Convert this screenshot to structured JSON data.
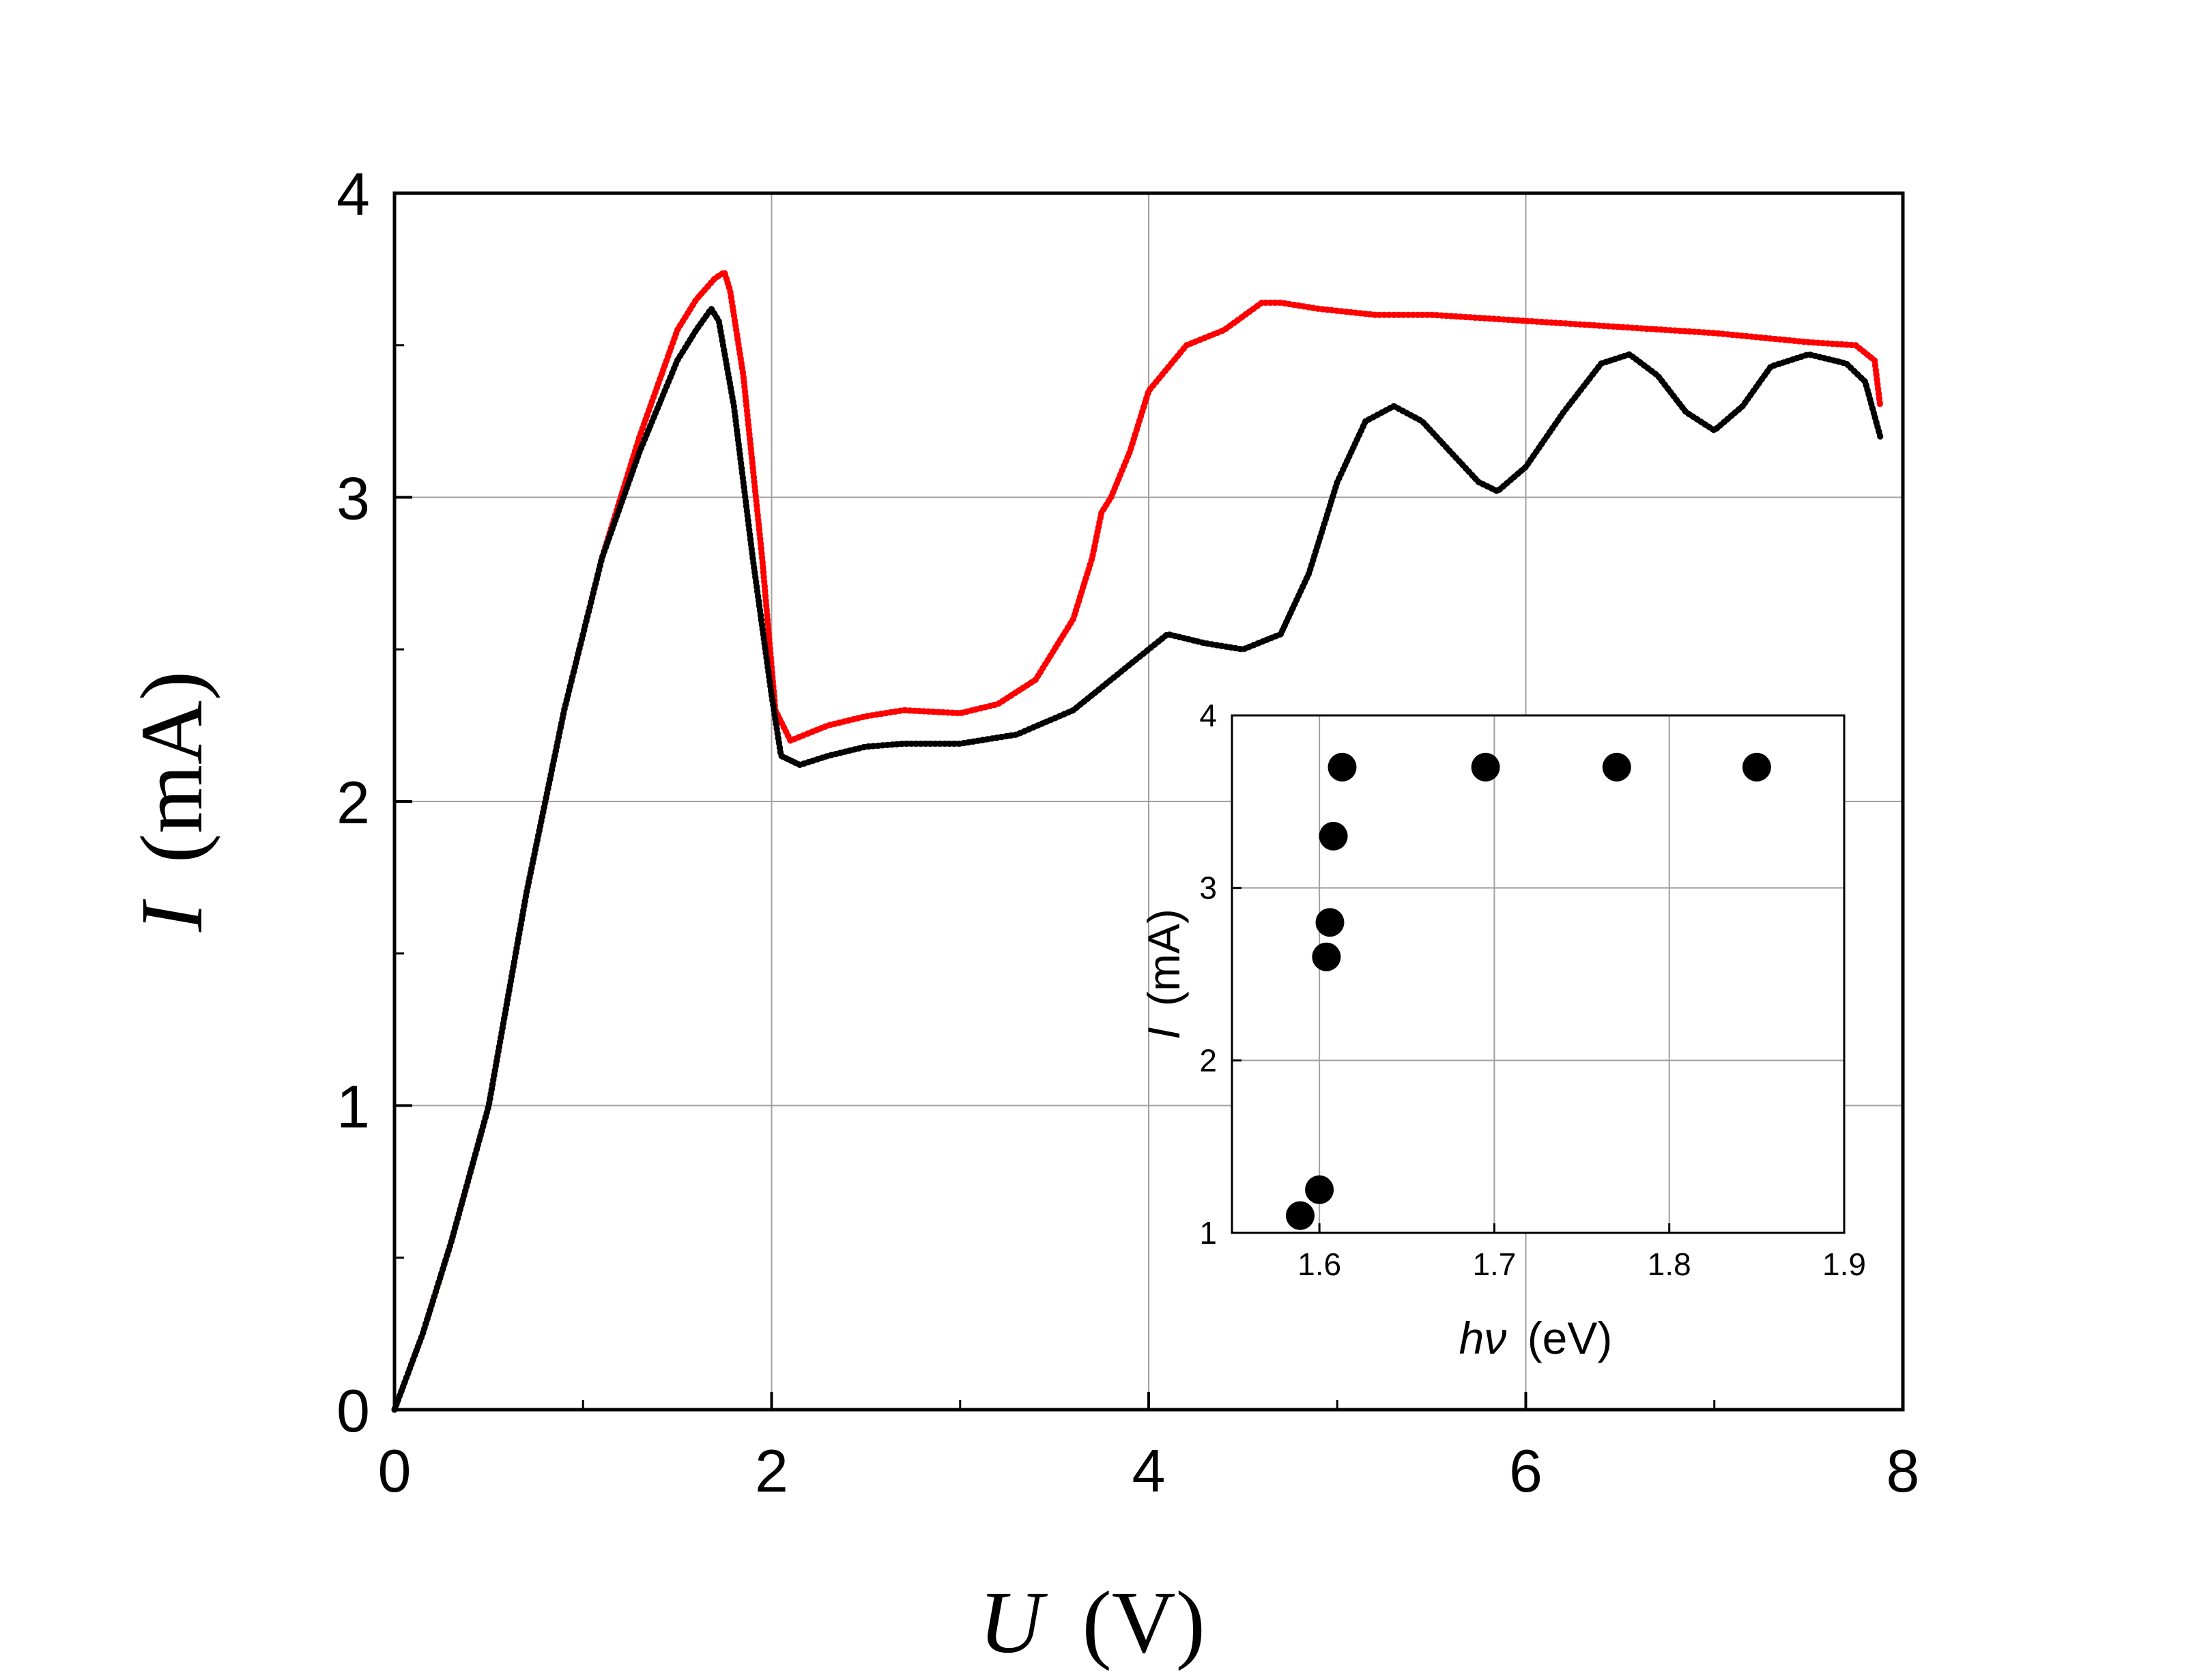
{
  "chart_data": [
    {
      "type": "line",
      "id": "main",
      "title": "",
      "xlabel": {
        "var": "U",
        "unit": "(V)"
      },
      "ylabel": {
        "var": "I",
        "unit": "(mA)"
      },
      "xlim": [
        0,
        8
      ],
      "ylim": [
        0,
        4
      ],
      "xticks": [
        0,
        2,
        4,
        6,
        8
      ],
      "yticks": [
        0,
        1,
        2,
        3,
        4
      ],
      "grid": true,
      "series": [
        {
          "name": "red",
          "color": "#ff0000",
          "x": [
            0.0,
            0.15,
            0.3,
            0.5,
            0.7,
            0.9,
            1.1,
            1.3,
            1.5,
            1.6,
            1.7,
            1.75,
            1.78,
            1.85,
            1.95,
            2.02,
            2.1,
            2.3,
            2.5,
            2.7,
            3.0,
            3.2,
            3.4,
            3.6,
            3.7,
            3.75,
            3.8,
            3.9,
            4.0,
            4.2,
            4.4,
            4.6,
            4.7,
            4.9,
            5.2,
            5.5,
            6.0,
            6.5,
            7.0,
            7.5,
            7.75,
            7.85,
            7.88
          ],
          "y": [
            0.0,
            0.25,
            0.55,
            1.0,
            1.7,
            2.3,
            2.8,
            3.2,
            3.55,
            3.65,
            3.72,
            3.74,
            3.68,
            3.4,
            2.8,
            2.3,
            2.2,
            2.25,
            2.28,
            2.3,
            2.29,
            2.32,
            2.4,
            2.6,
            2.8,
            2.95,
            3.0,
            3.15,
            3.35,
            3.5,
            3.55,
            3.64,
            3.64,
            3.62,
            3.6,
            3.6,
            3.58,
            3.56,
            3.54,
            3.51,
            3.5,
            3.45,
            3.3
          ]
        },
        {
          "name": "black",
          "color": "#000000",
          "x": [
            0.0,
            0.15,
            0.3,
            0.5,
            0.7,
            0.9,
            1.1,
            1.3,
            1.5,
            1.6,
            1.68,
            1.72,
            1.8,
            1.9,
            2.0,
            2.05,
            2.15,
            2.3,
            2.5,
            2.7,
            3.0,
            3.3,
            3.6,
            3.9,
            4.1,
            4.3,
            4.5,
            4.7,
            4.85,
            5.0,
            5.15,
            5.3,
            5.45,
            5.6,
            5.75,
            5.85,
            6.0,
            6.2,
            6.4,
            6.55,
            6.7,
            6.85,
            7.0,
            7.15,
            7.3,
            7.5,
            7.7,
            7.8,
            7.88
          ],
          "y": [
            0.0,
            0.25,
            0.55,
            1.0,
            1.7,
            2.3,
            2.8,
            3.15,
            3.45,
            3.55,
            3.62,
            3.58,
            3.3,
            2.8,
            2.35,
            2.15,
            2.12,
            2.15,
            2.18,
            2.19,
            2.19,
            2.22,
            2.3,
            2.45,
            2.55,
            2.52,
            2.5,
            2.55,
            2.75,
            3.05,
            3.25,
            3.3,
            3.25,
            3.15,
            3.05,
            3.02,
            3.1,
            3.28,
            3.44,
            3.47,
            3.4,
            3.28,
            3.22,
            3.3,
            3.43,
            3.47,
            3.44,
            3.38,
            3.2
          ]
        }
      ]
    },
    {
      "type": "scatter",
      "id": "inset",
      "title": "",
      "xlabel": {
        "var": "hν",
        "unit": "(eV)"
      },
      "ylabel": {
        "var": "I",
        "unit": "(mA)"
      },
      "xlim": [
        1.55,
        1.9
      ],
      "ylim": [
        1,
        4
      ],
      "xticks": [
        "1.6",
        "1.7",
        "1.8",
        "1.9"
      ],
      "yticks": [
        "1",
        "2",
        "3",
        "4"
      ],
      "grid": true,
      "points": {
        "x": [
          1.589,
          1.6,
          1.604,
          1.606,
          1.608,
          1.613,
          1.695,
          1.77,
          1.85
        ],
        "y": [
          1.1,
          1.25,
          2.6,
          2.8,
          3.3,
          3.7,
          3.7,
          3.7,
          3.7
        ],
        "color": "#000000"
      }
    }
  ]
}
